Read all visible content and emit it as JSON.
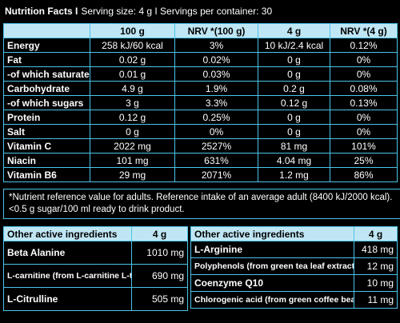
{
  "header": {
    "title": "Nutrition Facts I",
    "serving": "Serving size: 4 g I Servings per container: 30"
  },
  "nutrition_table": {
    "columns": [
      "100 g",
      "NRV *(100 g)",
      "4 g",
      "NRV *(4 g)"
    ],
    "rows": [
      [
        "Energy",
        "258 kJ/60 kcal",
        "3%",
        "10 kJ/2.4 kcal",
        "0.12%"
      ],
      [
        "Fat",
        "0.02 g",
        "0.02%",
        "0 g",
        "0%"
      ],
      [
        "-of which saturates",
        "0.01 g",
        "0.03%",
        "0 g",
        "0%"
      ],
      [
        "Carbohydrate",
        "4.9 g",
        "1.9%",
        "0.2 g",
        "0.08%"
      ],
      [
        "-of which sugars",
        "3 g",
        "3.3%",
        "0.12 g",
        "0.13%"
      ],
      [
        "Protein",
        "0.12 g",
        "0.25%",
        "0 g",
        "0%"
      ],
      [
        "Salt",
        "0 g",
        "0%",
        "0 g",
        "0%"
      ],
      [
        "Vitamin C",
        "2022 mg",
        "2527%",
        "81 mg",
        "101%"
      ],
      [
        "Niacin",
        "101 mg",
        "631%",
        "4.04 mg",
        "25%"
      ],
      [
        "Vitamin B6",
        "29 mg",
        "2071%",
        "1.2 mg",
        "86%"
      ]
    ]
  },
  "footnote": [
    "*Nutrient reference value for adults. Reference intake of an average adult (8400 kJ/2000 kcal).",
    "<0.5 g sugar/100 ml ready to drink product."
  ],
  "active_left": {
    "header": [
      "Other active ingredients",
      "4 g"
    ],
    "rows": [
      [
        "Beta Alanine",
        "1010 mg"
      ],
      [
        "L-carnitine (from L-carnitine L-tartrate)",
        "690 mg"
      ],
      [
        "L-Citrulline",
        "505 mg"
      ]
    ]
  },
  "active_right": {
    "header": [
      "Other active ingredients",
      "4 g"
    ],
    "rows": [
      [
        "L-Arginine",
        "418 mg"
      ],
      [
        "Polyphenols (from green tea leaf extract)",
        "12 mg"
      ],
      [
        "Coenzyme Q10",
        "10 mg"
      ],
      [
        "Chlorogenic acid (from green coffee bean extract)",
        "11 mg"
      ]
    ]
  }
}
